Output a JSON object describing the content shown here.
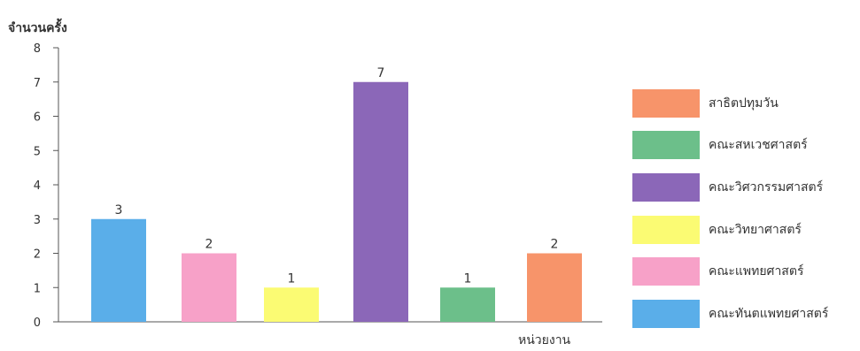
{
  "chart_data": {
    "type": "bar",
    "ylabel": "จำนวนครั้ง",
    "xlabel": "หน่วยงาน",
    "ylim": [
      0,
      8
    ],
    "yticks": [
      "0",
      "1",
      "2",
      "3",
      "4",
      "5",
      "6",
      "7",
      "8"
    ],
    "grid": false,
    "legend_position": "right",
    "bars": [
      {
        "value": 3,
        "label": "3",
        "color": "#5aaee9"
      },
      {
        "value": 2,
        "label": "2",
        "color": "#f7a1c8"
      },
      {
        "value": 1,
        "label": "1",
        "color": "#fbfb73"
      },
      {
        "value": 7,
        "label": "7",
        "color": "#8b67b8"
      },
      {
        "value": 1,
        "label": "1",
        "color": "#6cbf8a"
      },
      {
        "value": 2,
        "label": "2",
        "color": "#f7946a"
      }
    ]
  },
  "legend": [
    {
      "label": "สาธิตปทุมวัน",
      "color": "#f7946a"
    },
    {
      "label": "คณะสหเวชศาสตร์",
      "color": "#6cbf8a"
    },
    {
      "label": "คณะวิศวกรรมศาสตร์",
      "color": "#8b67b8"
    },
    {
      "label": "คณะวิทยาศาสตร์",
      "color": "#fbfb73"
    },
    {
      "label": "คณะแพทยศาสตร์",
      "color": "#f7a1c8"
    },
    {
      "label": "คณะทันตแพทยศาสตร์",
      "color": "#5aaee9"
    }
  ]
}
